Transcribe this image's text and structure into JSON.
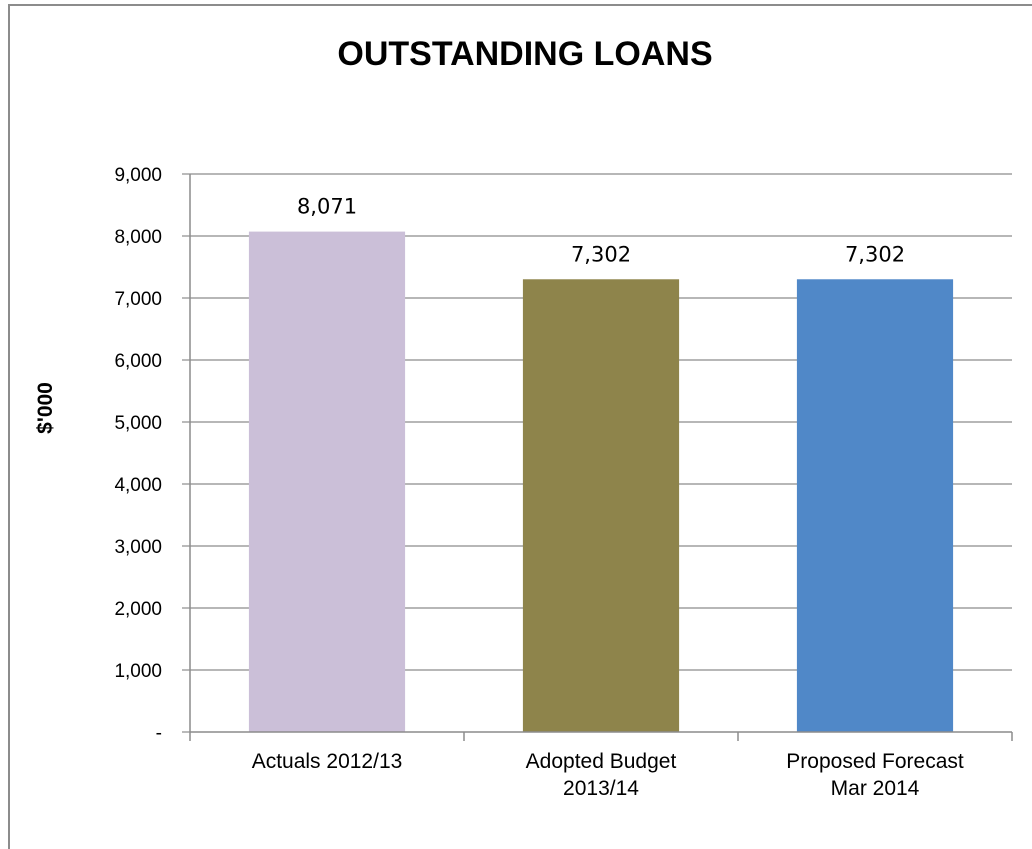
{
  "chart_data": {
    "type": "bar",
    "title": "OUTSTANDING LOANS",
    "ylabel": "$'000",
    "xlabel": "",
    "ylim": [
      0,
      9000
    ],
    "yticks": [
      "-",
      "1,000",
      "2,000",
      "3,000",
      "4,000",
      "5,000",
      "6,000",
      "7,000",
      "8,000",
      "9,000"
    ],
    "categories": [
      [
        "Actuals 2012/13"
      ],
      [
        "Adopted Budget",
        "2013/14"
      ],
      [
        "Proposed Forecast",
        "Mar 2014"
      ]
    ],
    "values": [
      8071,
      7302,
      7302
    ],
    "data_labels": [
      "8,071",
      "7,302",
      "7,302"
    ],
    "colors": [
      "#cbbfd8",
      "#8e844b",
      "#5088c8"
    ],
    "grid": true,
    "legend": "none"
  }
}
